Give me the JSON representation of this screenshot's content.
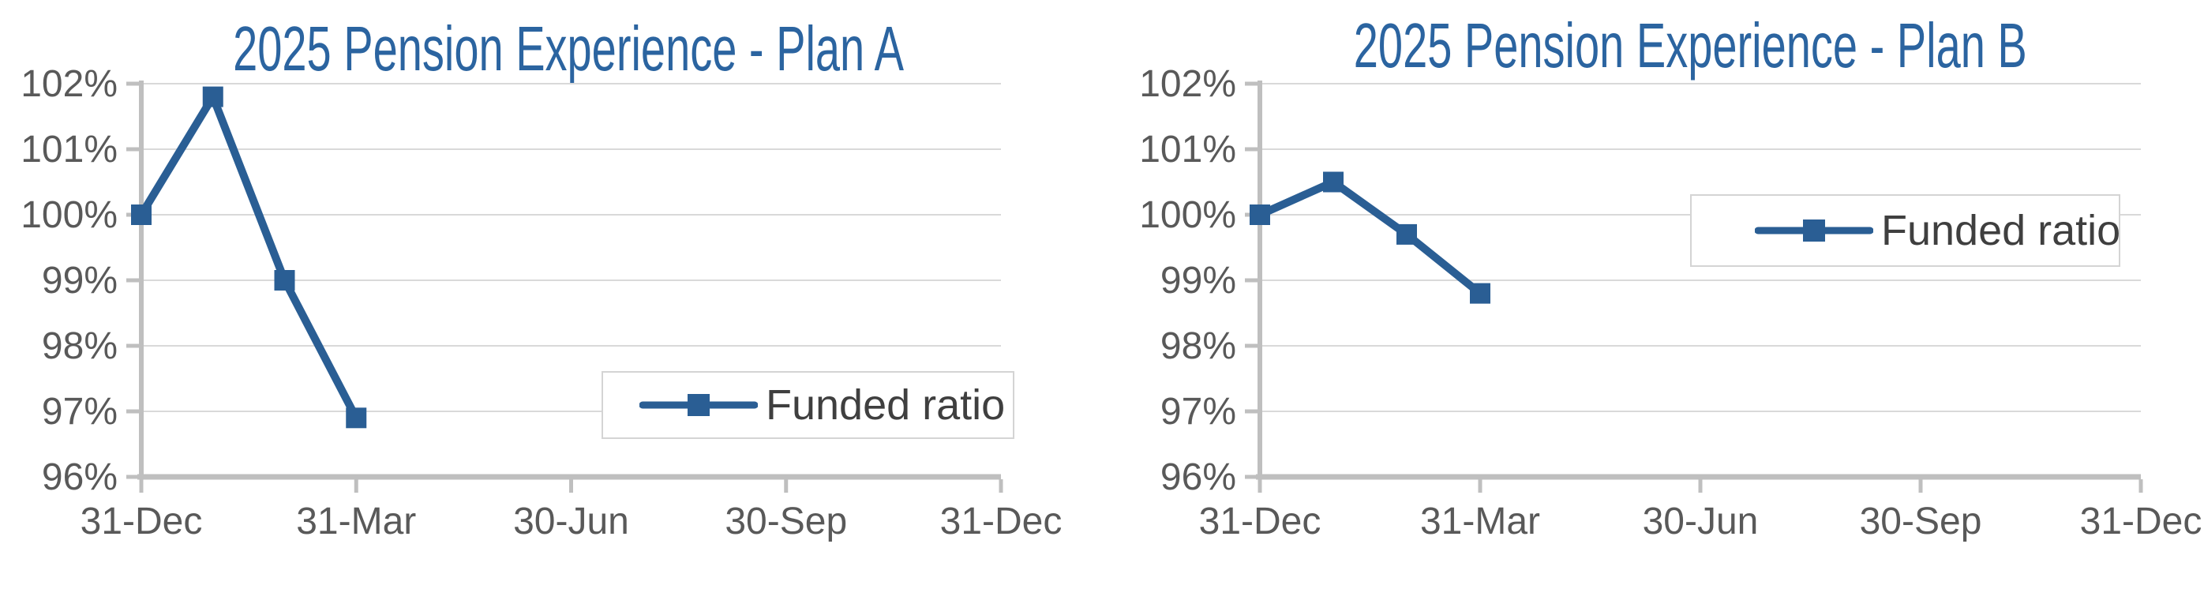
{
  "colors": {
    "background": "#FFFFFF",
    "series": "#2A5E94",
    "title": "#2B64A0",
    "axis_label": "#595959",
    "legend_text": "#3F3F3F",
    "gridline": "#D9D9D9",
    "axis_line": "#BFBFBF",
    "legend_border": "#D4D4D4"
  },
  "chart_data": [
    {
      "type": "line",
      "title": "2025 Pension Experience - Plan A",
      "x_axis": {
        "tick_labels": [
          "31-Dec",
          "31-Mar",
          "30-Jun",
          "30-Sep",
          "31-Dec"
        ],
        "range_months": [
          0,
          12
        ]
      },
      "y_axis": {
        "tick_labels": [
          "102%",
          "101%",
          "100%",
          "99%",
          "98%",
          "97%",
          "96%"
        ],
        "ylim": [
          96,
          102
        ],
        "unit": "%"
      },
      "grid": "horizontal",
      "legend": {
        "entries": [
          "Funded ratio"
        ],
        "position": "inside-right"
      },
      "series": [
        {
          "name": "Funded ratio",
          "x_months": [
            0,
            1,
            2,
            3
          ],
          "x_dates": [
            "31-Dec",
            "31-Jan",
            "28-Feb",
            "31-Mar"
          ],
          "values_pct": [
            100.0,
            101.8,
            99.0,
            96.9
          ]
        }
      ]
    },
    {
      "type": "line",
      "title": "2025 Pension Experience - Plan B",
      "x_axis": {
        "tick_labels": [
          "31-Dec",
          "31-Mar",
          "30-Jun",
          "30-Sep",
          "31-Dec"
        ],
        "range_months": [
          0,
          12
        ]
      },
      "y_axis": {
        "tick_labels": [
          "102%",
          "101%",
          "100%",
          "99%",
          "98%",
          "97%",
          "96%"
        ],
        "ylim": [
          96,
          102
        ],
        "unit": "%"
      },
      "grid": "horizontal",
      "legend": {
        "entries": [
          "Funded ratio"
        ],
        "position": "inside-right"
      },
      "series": [
        {
          "name": "Funded ratio",
          "x_months": [
            0,
            1,
            2,
            3
          ],
          "x_dates": [
            "31-Dec",
            "31-Jan",
            "28-Feb",
            "31-Mar"
          ],
          "values_pct": [
            100.0,
            100.5,
            99.7,
            98.8
          ]
        }
      ]
    }
  ]
}
